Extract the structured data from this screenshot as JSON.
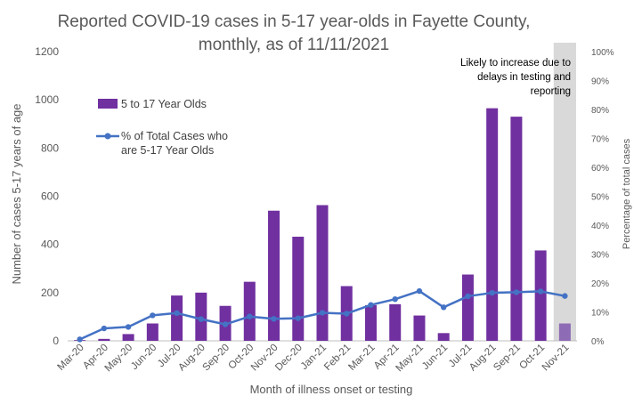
{
  "chart_data": {
    "type": "bar",
    "title_lines": [
      "Reported COVID-19 cases in 5-17 year-olds in Fayette County,",
      "monthly, as of 11/11/2021"
    ],
    "xlabel": "Month of illness onset or testing",
    "ylabel": "Number of cases 5-17 years of age",
    "y2label": "Percentage of total cases",
    "categories": [
      "Mar-20",
      "Apr-20",
      "May-20",
      "Jun-20",
      "Jul-20",
      "Aug-20",
      "Sep-20",
      "Oct-20",
      "Nov-20",
      "Dec-20",
      "Jan-21",
      "Feb-21",
      "Mar-21",
      "Apr-21",
      "May-21",
      "Jun-21",
      "Jul-21",
      "Aug-21",
      "Sep-21",
      "Oct-21",
      "Nov-21"
    ],
    "ylim": [
      0,
      1200
    ],
    "yticks": [
      0,
      200,
      400,
      600,
      800,
      1000,
      1200
    ],
    "y2lim": [
      0,
      100
    ],
    "y2ticks": [
      "0%",
      "10%",
      "20%",
      "30%",
      "40%",
      "50%",
      "60%",
      "70%",
      "80%",
      "90%",
      "100%"
    ],
    "grid": false,
    "legend_position": "upper-left",
    "series": [
      {
        "name": "5 to 17 Year Olds",
        "kind": "bar",
        "axis": "left",
        "color": "#7030a0",
        "values": [
          3,
          8,
          28,
          72,
          188,
          200,
          145,
          245,
          540,
          432,
          563,
          227,
          148,
          152,
          105,
          32,
          275,
          965,
          930,
          375,
          72
        ]
      },
      {
        "name": "% of Total Cases who are 5-17 Year Olds",
        "name_lines": [
          "% of Total Cases who",
          "are 5-17 Year Olds"
        ],
        "kind": "line",
        "axis": "right",
        "color": "#4472c4",
        "values": [
          0.5,
          4.3,
          4.8,
          8.8,
          9.6,
          7.5,
          5.7,
          8.4,
          7.6,
          7.8,
          9.7,
          9.4,
          12.4,
          14.4,
          17.2,
          11.6,
          15.4,
          16.6,
          16.8,
          17.1,
          15.5
        ]
      }
    ],
    "highlight": {
      "category": "Nov-21",
      "fill": "#d9d9d9",
      "bar_color": "#8e6bb5",
      "annotation_lines": [
        "Likely to increase due to",
        "delays in testing and",
        "reporting"
      ]
    }
  }
}
